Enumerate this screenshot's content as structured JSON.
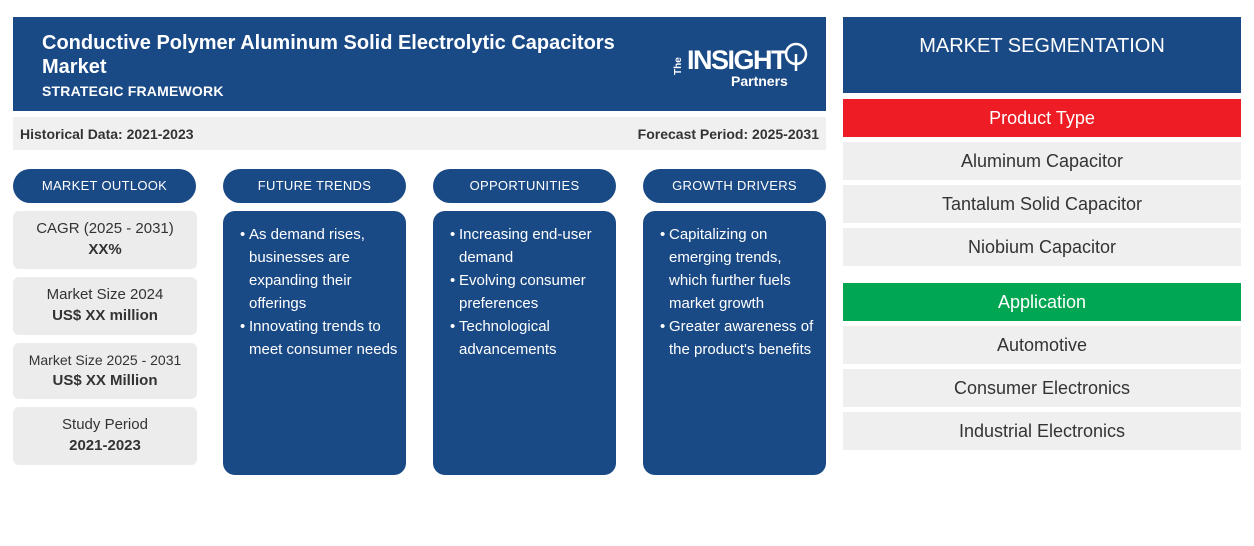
{
  "header": {
    "title": "Conductive Polymer Aluminum Solid Electrolytic Capacitors Market",
    "subtitle": "STRATEGIC FRAMEWORK",
    "logo": {
      "the": "The",
      "insight": "INSIGHT",
      "partners": "Partners"
    }
  },
  "period": {
    "historical": "Historical Data: 2021-2023",
    "forecast": "Forecast Period: 2025-2031"
  },
  "columns": {
    "outlook": "MARKET OUTLOOK",
    "trends": "FUTURE TRENDS",
    "opportunities": "OPPORTUNITIES",
    "drivers": "GROWTH DRIVERS"
  },
  "outlook": [
    {
      "label": "CAGR (2025 - 2031)",
      "value": "XX%"
    },
    {
      "label": "Market Size 2024",
      "value": "US$ XX million"
    },
    {
      "label": "Market Size 2025 - 2031",
      "value": "US$ XX Million"
    },
    {
      "label": "Study Period",
      "value": "2021-2023"
    }
  ],
  "trends": [
    "As demand rises, businesses are expanding their offerings",
    "Innovating trends to meet consumer needs"
  ],
  "opportunities": [
    "Increasing end-user demand",
    "Evolving consumer preferences",
    "Technological advancements"
  ],
  "drivers": [
    "Capitalizing on emerging trends, which further fuels market growth",
    "Greater awareness of the product's benefits"
  ],
  "segmentation": {
    "title": "MARKET SEGMENTATION",
    "product_type": {
      "label": "Product Type",
      "color": "#ee1c25",
      "items": [
        "Aluminum Capacitor",
        "Tantalum Solid Capacitor",
        "Niobium Capacitor"
      ]
    },
    "application": {
      "label": "Application",
      "color": "#00a651",
      "items": [
        "Automotive",
        "Consumer Electronics",
        "Industrial Electronics"
      ]
    }
  },
  "colors": {
    "brand": "#1a4a86",
    "panel": "#ececec"
  }
}
